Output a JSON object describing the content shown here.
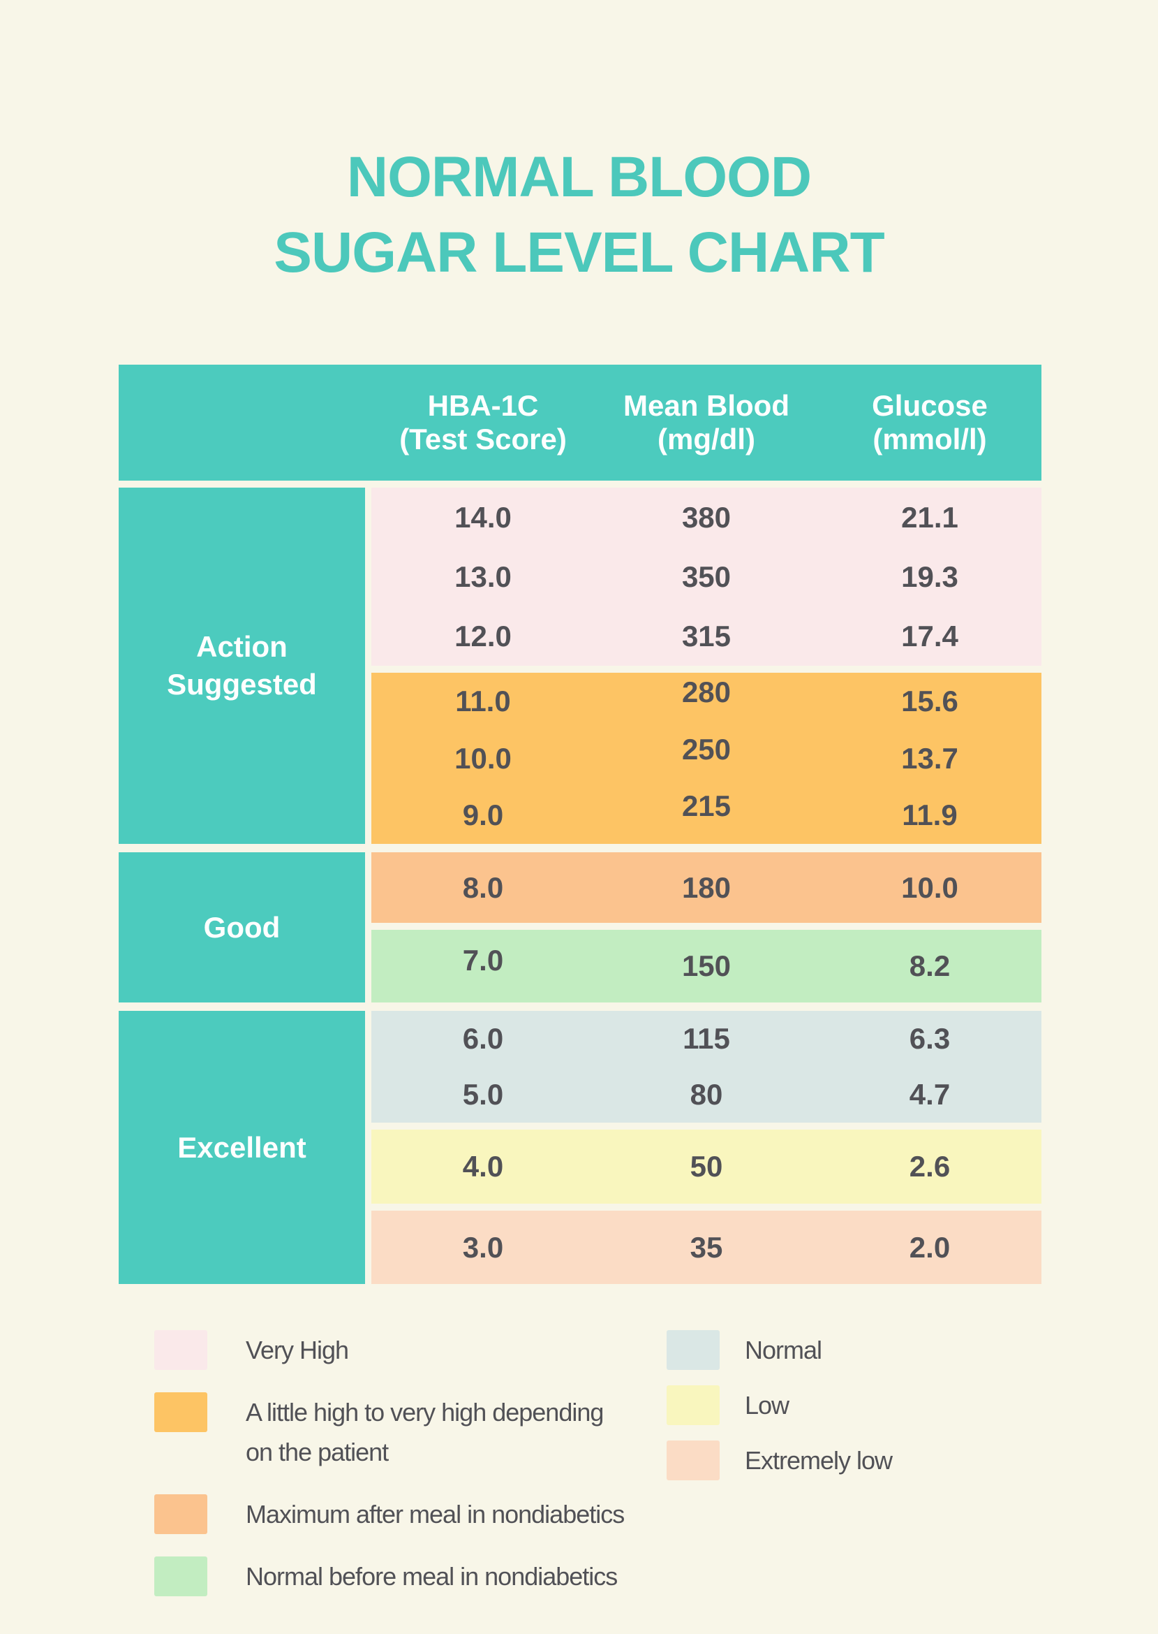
{
  "title": {
    "line1": "NORMAL BLOOD",
    "line2": "SUGAR LEVEL CHART"
  },
  "colors": {
    "background": "#F8F6E8",
    "teal": "#4CCBBE",
    "title_text": "#4CC8BB",
    "header_text": "#FFFFFF",
    "number_text": "#515156",
    "very_high": "#FAE9EA",
    "little_high": "#FDC464",
    "max_after_meal": "#FBC38E",
    "normal_before_meal": "#C2EDC1",
    "normal": "#DAE7E5",
    "low": "#F9F6BE",
    "extremely_low": "#FBDCC5"
  },
  "table": {
    "headers": [
      {
        "line1": "HBA-1C",
        "line2": "(Test Score)"
      },
      {
        "line1": "Mean Blood",
        "line2": "(mg/dl)"
      },
      {
        "line1": "Glucose",
        "line2": "(mmol/l)"
      }
    ],
    "groups": [
      {
        "label_lines": [
          "Action",
          "Suggested"
        ],
        "sections": [
          {
            "color_key": "very_high",
            "rows": [
              [
                "14.0",
                "380",
                "21.1"
              ],
              [
                "13.0",
                "350",
                "19.3"
              ],
              [
                "12.0",
                "315",
                "17.4"
              ]
            ]
          },
          {
            "color_key": "little_high",
            "rows": [
              [
                "11.0",
                "280",
                "15.6"
              ],
              [
                "10.0",
                "250",
                "13.7"
              ],
              [
                "9.0",
                "215",
                "11.9"
              ]
            ]
          }
        ]
      },
      {
        "label_lines": [
          "Good"
        ],
        "sections": [
          {
            "color_key": "max_after_meal",
            "rows": [
              [
                "8.0",
                "180",
                "10.0"
              ]
            ]
          },
          {
            "color_key": "normal_before_meal",
            "rows": [
              [
                "7.0",
                "150",
                "8.2"
              ]
            ]
          }
        ]
      },
      {
        "label_lines": [
          "Excellent"
        ],
        "sections": [
          {
            "color_key": "normal",
            "rows": [
              [
                "6.0",
                "115",
                "6.3"
              ],
              [
                "5.0",
                "80",
                "4.7"
              ]
            ]
          },
          {
            "color_key": "low",
            "rows": [
              [
                "4.0",
                "50",
                "2.6"
              ]
            ]
          },
          {
            "color_key": "extremely_low",
            "rows": [
              [
                "3.0",
                "35",
                "2.0"
              ]
            ]
          }
        ]
      }
    ]
  },
  "legend": {
    "left": [
      {
        "color_key": "very_high",
        "lines": [
          "Very High"
        ]
      },
      {
        "color_key": "little_high",
        "lines": [
          "A little high to very high depending",
          "on the patient"
        ]
      },
      {
        "color_key": "max_after_meal",
        "lines": [
          "Maximum after meal in nondiabetics"
        ]
      },
      {
        "color_key": "normal_before_meal",
        "lines": [
          "Normal before meal in nondiabetics"
        ]
      }
    ],
    "right": [
      {
        "color_key": "normal",
        "lines": [
          "Normal"
        ]
      },
      {
        "color_key": "low",
        "lines": [
          "Low"
        ]
      },
      {
        "color_key": "extremely_low",
        "lines": [
          "Extremely low"
        ]
      }
    ]
  },
  "chart_data": {
    "type": "table",
    "title": "NORMAL BLOOD SUGAR LEVEL CHART",
    "columns": [
      "HBA-1C (Test Score)",
      "Mean Blood (mg/dl)",
      "Glucose (mmol/l)"
    ],
    "row_groups": [
      {
        "assessment": "Action Suggested",
        "bands": [
          {
            "meaning": "Very High",
            "rows": [
              [
                14.0,
                380,
                21.1
              ],
              [
                13.0,
                350,
                19.3
              ],
              [
                12.0,
                315,
                17.4
              ]
            ]
          },
          {
            "meaning": "A little high to very high depending on the patient",
            "rows": [
              [
                11.0,
                280,
                15.6
              ],
              [
                10.0,
                250,
                13.7
              ],
              [
                9.0,
                215,
                11.9
              ]
            ]
          }
        ]
      },
      {
        "assessment": "Good",
        "bands": [
          {
            "meaning": "Maximum after meal in nondiabetics",
            "rows": [
              [
                8.0,
                180,
                10.0
              ]
            ]
          },
          {
            "meaning": "Normal before meal in nondiabetics",
            "rows": [
              [
                7.0,
                150,
                8.2
              ]
            ]
          }
        ]
      },
      {
        "assessment": "Excellent",
        "bands": [
          {
            "meaning": "Normal",
            "rows": [
              [
                6.0,
                115,
                6.3
              ],
              [
                5.0,
                80,
                4.7
              ]
            ]
          },
          {
            "meaning": "Low",
            "rows": [
              [
                4.0,
                50,
                2.6
              ]
            ]
          },
          {
            "meaning": "Extremely low",
            "rows": [
              [
                3.0,
                35,
                2.0
              ]
            ]
          }
        ]
      }
    ]
  }
}
